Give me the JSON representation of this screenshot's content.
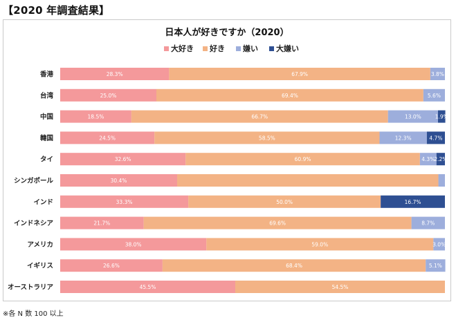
{
  "header": {
    "title": "【2020 年調査結果】"
  },
  "footnote": "※各 N 数 100 以上",
  "chart_data": {
    "type": "bar",
    "orientation": "horizontal",
    "stacked": true,
    "percent_stacked": true,
    "title": "日本人が好きですか（2020）",
    "legend_position": "top",
    "grid": false,
    "xlim": [
      0,
      100
    ],
    "categories": [
      "香港",
      "台湾",
      "中国",
      "韓国",
      "タイ",
      "シンガポール",
      "インド",
      "インドネシア",
      "アメリカ",
      "イギリス",
      "オーストラリア"
    ],
    "series": [
      {
        "name": "大好き",
        "color": "#f4999b",
        "values": [
          28.3,
          25.0,
          18.5,
          24.5,
          32.6,
          30.4,
          33.3,
          21.7,
          38.0,
          26.6,
          45.5
        ],
        "labels": [
          "28.3%",
          "25.0%",
          "18.5%",
          "24.5%",
          "32.6%",
          "30.4%",
          "33.3%",
          "21.7%",
          "38.0%",
          "26.6%",
          "45.5%"
        ]
      },
      {
        "name": "好き",
        "color": "#f3b385",
        "values": [
          67.9,
          69.4,
          66.7,
          58.5,
          60.9,
          67.9,
          50.0,
          69.6,
          59.0,
          68.4,
          54.5
        ],
        "labels": [
          "67.9%",
          "69.4%",
          "66.7%",
          "58.5%",
          "60.9%",
          "",
          "50.0%",
          "69.6%",
          "59.0%",
          "68.4%",
          "54.5%"
        ]
      },
      {
        "name": "嫌い",
        "color": "#9daedc",
        "values": [
          3.8,
          5.6,
          13.0,
          12.3,
          4.3,
          1.7,
          0.0,
          8.7,
          3.0,
          5.1,
          0.0
        ],
        "labels": [
          "3.8%",
          "5.6%",
          "13.0%",
          "12.3%",
          "4.3%",
          "",
          "",
          "8.7%",
          "3.0%",
          "5.1%",
          ""
        ]
      },
      {
        "name": "大嫌い",
        "color": "#2e4f92",
        "values": [
          0.0,
          0.0,
          1.9,
          4.7,
          2.2,
          0.0,
          16.7,
          0.0,
          0.0,
          0.0,
          0.0
        ],
        "labels": [
          "",
          "",
          "1.9%",
          "4.7%",
          "2.2%",
          "",
          "16.7%",
          "",
          "",
          "",
          ""
        ]
      }
    ]
  }
}
